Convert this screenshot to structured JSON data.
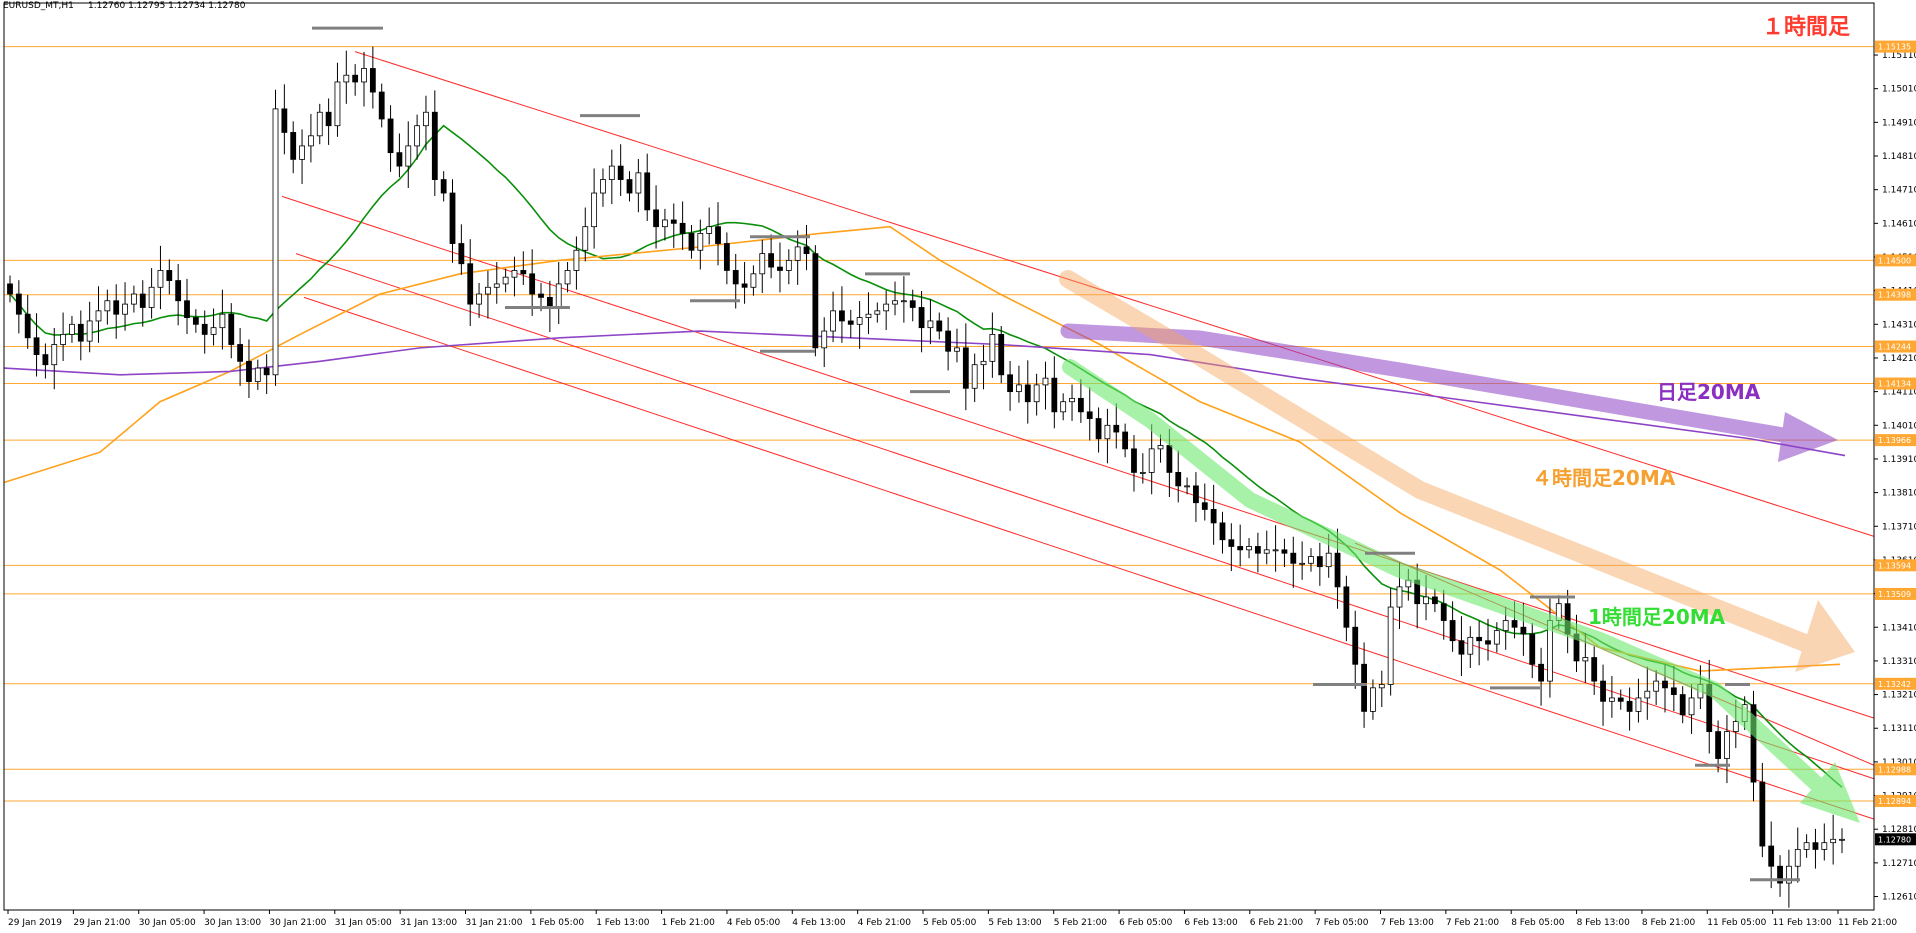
{
  "header": {
    "symbol": "EURUSD_MT,H1",
    "ohlc": "1.12760 1.12795 1.12734 1.12780",
    "timeframe_label": "１時間足"
  },
  "chart_data": {
    "type": "candlestick",
    "title": "",
    "xlabel": "",
    "ylabel": "",
    "ylim": [
      1.1257,
      1.1522
    ],
    "price_ticks": [
      "1.15110",
      "1.15010",
      "1.14910",
      "1.14810",
      "1.14710",
      "1.14610",
      "1.14510",
      "1.14410",
      "1.14310",
      "1.14210",
      "1.14110",
      "1.14010",
      "1.13910",
      "1.13810",
      "1.13710",
      "1.13610",
      "1.13510",
      "1.13410",
      "1.13310",
      "1.13210",
      "1.13110",
      "1.13010",
      "1.12910",
      "1.12810",
      "1.12710",
      "1.12610"
    ],
    "time_ticks": [
      "29 Jan 2019",
      "29 Jan 21:00",
      "30 Jan 05:00",
      "30 Jan 13:00",
      "30 Jan 21:00",
      "31 Jan 05:00",
      "31 Jan 13:00",
      "31 Jan 21:00",
      "1 Feb 05:00",
      "1 Feb 13:00",
      "1 Feb 21:00",
      "4 Feb 05:00",
      "4 Feb 13:00",
      "4 Feb 21:00",
      "5 Feb 05:00",
      "5 Feb 13:00",
      "5 Feb 21:00",
      "6 Feb 05:00",
      "6 Feb 13:00",
      "6 Feb 21:00",
      "7 Feb 05:00",
      "7 Feb 13:00",
      "7 Feb 21:00",
      "8 Feb 05:00",
      "8 Feb 13:00",
      "8 Feb 21:00",
      "11 Feb 05:00",
      "11 Feb 13:00",
      "11 Feb 21:00"
    ],
    "horizontal_levels": [
      "1.15135",
      "1.14500",
      "1.14398",
      "1.14244",
      "1.14134",
      "1.13966",
      "1.13594",
      "1.13509",
      "1.13242",
      "1.12988",
      "1.12894"
    ],
    "current_price": "1.12780",
    "candles_close": [
      1.144,
      1.1434,
      1.1427,
      1.1422,
      1.1419,
      1.1425,
      1.1428,
      1.1431,
      1.1426,
      1.1432,
      1.1435,
      1.1438,
      1.1434,
      1.1437,
      1.144,
      1.1436,
      1.1442,
      1.1447,
      1.1444,
      1.1438,
      1.1433,
      1.1431,
      1.1428,
      1.143,
      1.1434,
      1.1425,
      1.142,
      1.1414,
      1.1418,
      1.1416,
      1.1495,
      1.1488,
      1.148,
      1.1484,
      1.1487,
      1.1494,
      1.149,
      1.1503,
      1.1505,
      1.1503,
      1.1507,
      1.15,
      1.1492,
      1.1482,
      1.1478,
      1.1484,
      1.149,
      1.1494,
      1.1474,
      1.147,
      1.1455,
      1.1449,
      1.1437,
      1.144,
      1.1442,
      1.1443,
      1.1445,
      1.1447,
      1.1446,
      1.144,
      1.1439,
      1.1436,
      1.1443,
      1.1447,
      1.1453,
      1.146,
      1.147,
      1.1474,
      1.1478,
      1.1474,
      1.147,
      1.1476,
      1.1465,
      1.146,
      1.1462,
      1.1461,
      1.1458,
      1.1453,
      1.1458,
      1.146,
      1.1455,
      1.1447,
      1.1443,
      1.1442,
      1.1446,
      1.1452,
      1.1448,
      1.1447,
      1.145,
      1.1454,
      1.1452,
      1.1424,
      1.1429,
      1.1435,
      1.1432,
      1.1431,
      1.1433,
      1.1434,
      1.1435,
      1.1437,
      1.1438,
      1.1438,
      1.1436,
      1.143,
      1.1432,
      1.1429,
      1.1423,
      1.1424,
      1.1412,
      1.1419,
      1.142,
      1.1428,
      1.1416,
      1.1411,
      1.1413,
      1.1408,
      1.1413,
      1.1415,
      1.1405,
      1.1408,
      1.1409,
      1.1405,
      1.1403,
      1.1397,
      1.1401,
      1.1399,
      1.1394,
      1.1387,
      1.1387,
      1.1394,
      1.1395,
      1.1387,
      1.1383,
      1.1383,
      1.1378,
      1.1376,
      1.1372,
      1.1367,
      1.1365,
      1.1364,
      1.1365,
      1.1363,
      1.1364,
      1.1364,
      1.1363,
      1.136,
      1.136,
      1.1362,
      1.1359,
      1.1363,
      1.1353,
      1.1341,
      1.133,
      1.1316,
      1.1323,
      1.1324,
      1.1347,
      1.1353,
      1.1355,
      1.1348,
      1.135,
      1.1348,
      1.1343,
      1.1337,
      1.1333,
      1.1338,
      1.1337,
      1.1336,
      1.134,
      1.1343,
      1.1341,
      1.1339,
      1.133,
      1.1325,
      1.1343,
      1.1348,
      1.1339,
      1.1331,
      1.1332,
      1.1325,
      1.1319,
      1.132,
      1.1319,
      1.1316,
      1.132,
      1.1322,
      1.1325,
      1.1323,
      1.1321,
      1.1315,
      1.132,
      1.1324,
      1.131,
      1.1302,
      1.131,
      1.1313,
      1.1318,
      1.1295,
      1.1276,
      1.127,
      1.1265,
      1.127,
      1.1275,
      1.1277,
      1.1275,
      1.1277,
      1.1278,
      1.1278
    ]
  },
  "legend": {
    "daily_ma": "日足20MA",
    "h4_ma": "４時間足20MA",
    "h1_ma": "1時間足20MA"
  },
  "colors": {
    "daily_ma": "#8e44c6",
    "h4_ma": "#ffa11a",
    "h1_ma": "#0a8f0a",
    "channel": "#ff2a2a",
    "level": "#ffa733",
    "timeframe_label": "#ff3b30"
  }
}
